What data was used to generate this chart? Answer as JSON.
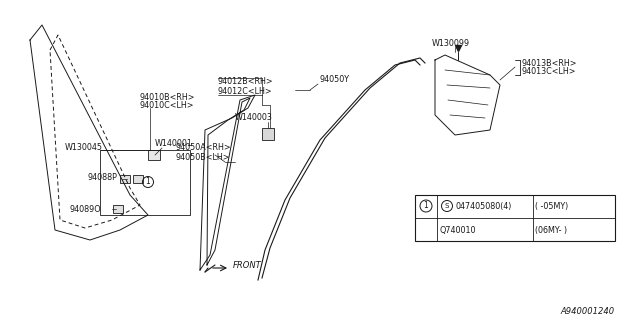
{
  "bg_color": "#ffffff",
  "line_color": "#1a1a1a",
  "watermark": "A940001240",
  "labels": {
    "94010B": "94010B<RH>",
    "94010C": "94010C<LH>",
    "W130045": "W130045",
    "W140001": "W140001",
    "94088P": "94088P",
    "94089": "94089O",
    "94012B": "94012B<RH>",
    "94012C": "94012C<LH>",
    "W140003": "W140003",
    "94050A": "94050A<RH>",
    "94050B": "94050B<LH>",
    "94050Y": "94050Y",
    "W130099": "W130099",
    "94013B": "94013B<RH>",
    "94013C": "94013C<LH>"
  },
  "table_row1_sym": "S",
  "table_row1_part": "047405080(4)",
  "table_row1_note": "( -05MY)",
  "table_row2_part": "Q740010",
  "table_row2_note": "(06MY- )"
}
